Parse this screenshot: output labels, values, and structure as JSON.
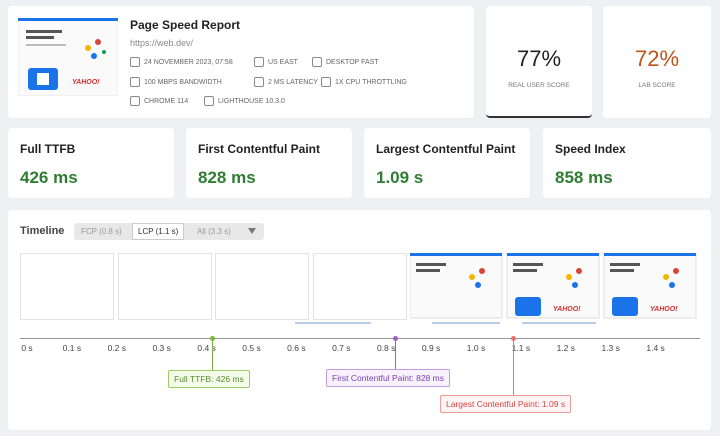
{
  "header": {
    "title": "Page Speed Report",
    "url": "https://web.dev/",
    "meta": [
      "24 NOVEMBER 2023, 07:58",
      "US EAST",
      "DESKTOP FAST",
      "100 MBPS BANDWIDTH",
      "2 MS LATENCY",
      "1X CPU THROTTLING",
      "CHROME 114",
      "LIGHTHOUSE 10.3.0"
    ]
  },
  "scores": [
    {
      "value": "77%",
      "label": "REAL USER SCORE"
    },
    {
      "value": "72%",
      "label": "LAB SCORE"
    }
  ],
  "metrics": [
    {
      "label": "Full TTFB",
      "value": "426 ms"
    },
    {
      "label": "First Contentful Paint",
      "value": "828 ms"
    },
    {
      "label": "Largest Contentful Paint",
      "value": "1.09 s"
    },
    {
      "label": "Speed Index",
      "value": "858 ms"
    }
  ],
  "timeline": {
    "title": "Timeline",
    "tabs": [
      "FCP (0.8 s)",
      "LCP (1.1 s)",
      "All (3.3 s)"
    ],
    "ticks": [
      "0 s",
      "0.1 s",
      "0.2 s",
      "0.3 s",
      "0.4 s",
      "0.5 s",
      "0.6 s",
      "0.7 s",
      "0.8 s",
      "0.9 s",
      "1.0 s",
      "1.1 s",
      "1.2 s",
      "1.3 s",
      "1.4 s"
    ],
    "markers": [
      "Full TTFB: 426 ms",
      "First Contentful Paint: 828 ms",
      "Largest Contentful Paint: 1.09 s"
    ]
  }
}
